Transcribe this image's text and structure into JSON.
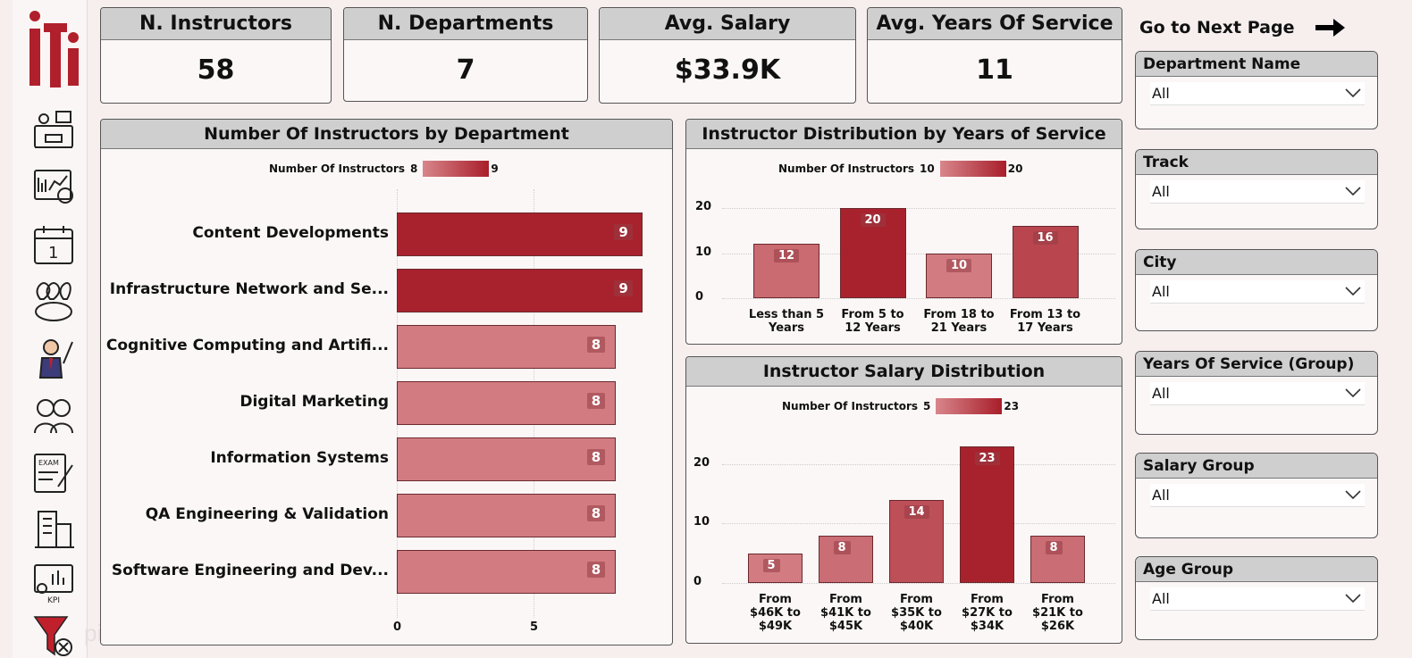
{
  "sidebar": {
    "logo_text": "iti",
    "icons": [
      "hr-icon",
      "analytics-icon",
      "calendar-icon",
      "locations-icon",
      "instructor-icon",
      "students-icon",
      "exam-icon",
      "buildings-icon",
      "kpi-icon",
      "clear-filter-icon"
    ],
    "brand_watermark": "pixel"
  },
  "kpis": [
    {
      "label": "N. Instructors",
      "value": "58"
    },
    {
      "label": "N. Departments",
      "value": "7"
    },
    {
      "label": "Avg. Salary",
      "value": "$33.9K"
    },
    {
      "label": "Avg. Years Of Service",
      "value": "11"
    }
  ],
  "nav": {
    "next_label": "Go to Next Page"
  },
  "slicers": [
    {
      "label": "Department Name",
      "value": "All"
    },
    {
      "label": "Track",
      "value": "All"
    },
    {
      "label": "City",
      "value": "All"
    },
    {
      "label": "Years Of Service (Group)",
      "value": "All"
    },
    {
      "label": "Salary Group",
      "value": "All"
    },
    {
      "label": "Age Group",
      "value": "All"
    }
  ],
  "colors": {
    "dark_bar": "#a8222d",
    "light_bar": "#d27c82",
    "mid_bar": "#c0505a"
  },
  "chart_data": [
    {
      "type": "bar",
      "orientation": "horizontal",
      "title": "Number Of Instructors by Department",
      "legend": {
        "label": "Number Of Instructors",
        "min": "8",
        "max": "9"
      },
      "categories": [
        "Content Developments",
        "Infrastructure Network and Se...",
        "Cognitive Computing and Artifi...",
        "Digital Marketing",
        "Information Systems",
        "QA Engineering & Validation",
        "Software Engineering and Dev..."
      ],
      "values": [
        9,
        9,
        8,
        8,
        8,
        8,
        8
      ],
      "xticks": [
        0,
        5
      ],
      "xlim": [
        0,
        10
      ]
    },
    {
      "type": "bar",
      "title": "Instructor Distribution by Years of Service",
      "legend": {
        "label": "Number Of Instructors",
        "min": "10",
        "max": "20"
      },
      "categories": [
        [
          "Less than 5",
          "Years"
        ],
        [
          "From 5 to",
          "12 Years"
        ],
        [
          "From 18 to",
          "21 Years"
        ],
        [
          "From 13 to",
          "17 Years"
        ]
      ],
      "values": [
        12,
        20,
        10,
        16
      ],
      "yticks": [
        0,
        10,
        20
      ],
      "ylim": [
        0,
        20
      ]
    },
    {
      "type": "bar",
      "title": "Instructor Salary Distribution",
      "legend": {
        "label": "Number Of Instructors",
        "min": "5",
        "max": "23"
      },
      "categories": [
        [
          "From",
          "$46K to",
          "$49K"
        ],
        [
          "From",
          "$41K to",
          "$45K"
        ],
        [
          "From",
          "$35K to",
          "$40K"
        ],
        [
          "From",
          "$27K to",
          "$34K"
        ],
        [
          "From",
          "$21K to",
          "$26K"
        ]
      ],
      "values": [
        5,
        8,
        14,
        23,
        8
      ],
      "yticks": [
        0,
        10,
        20
      ],
      "ylim": [
        0,
        23
      ]
    }
  ]
}
